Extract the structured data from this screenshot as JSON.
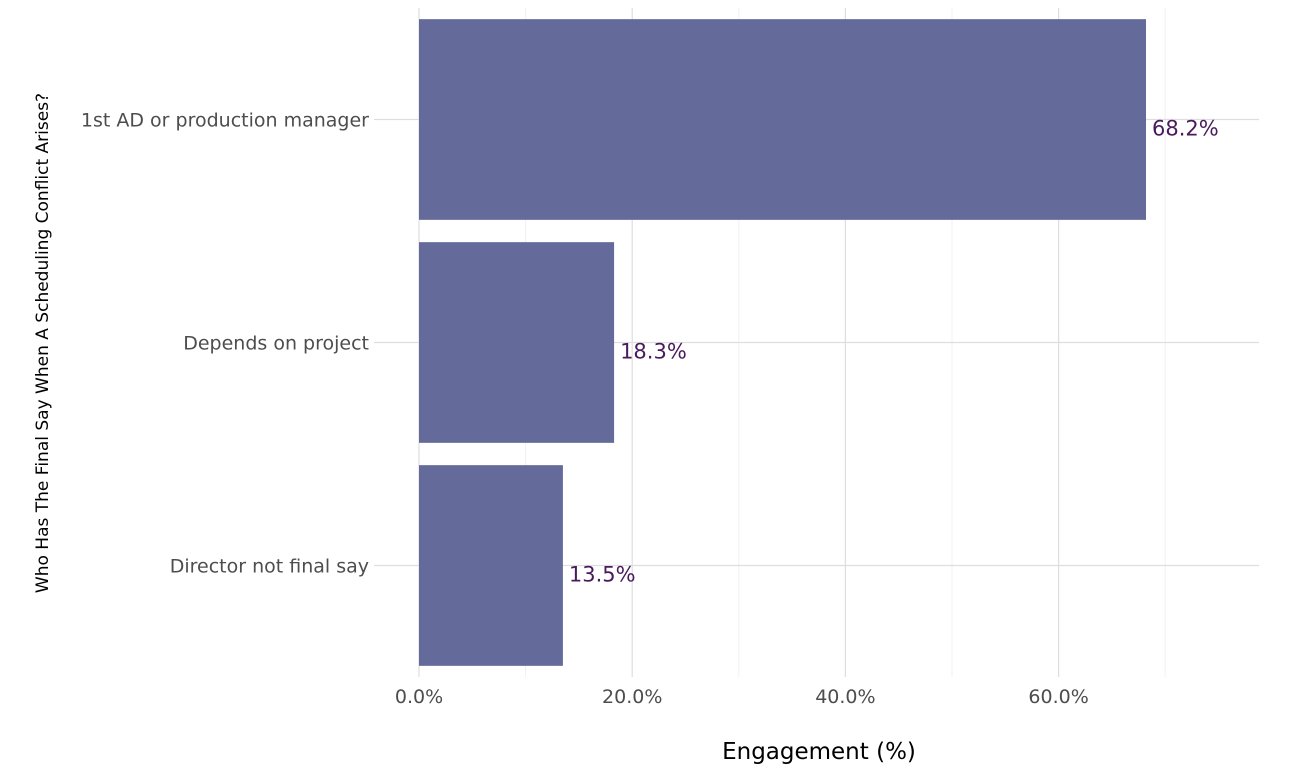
{
  "chart_data": {
    "type": "bar",
    "orientation": "horizontal",
    "title": "",
    "xlabel": "Engagement (%)",
    "ylabel": "Who Has The Final Say When A Scheduling Conflict Arises?",
    "categories": [
      "1st AD or production manager",
      "Depends on project",
      "Director not final say"
    ],
    "values": [
      68.2,
      18.3,
      13.5
    ],
    "data_labels": [
      "68.2%",
      "18.3%",
      "13.5%"
    ],
    "xlim": [
      0,
      78.8
    ],
    "x_ticks": [
      0,
      20,
      40,
      60
    ],
    "x_tick_labels": [
      "0.0%",
      "20.0%",
      "40.0%",
      "60.0%"
    ],
    "grid": true,
    "legend": "none",
    "colors": {
      "bar": "#646b9a",
      "data_label": "#4a1a5c",
      "grid_major": "#dedede",
      "grid_minor": "#f1f1f1"
    }
  }
}
